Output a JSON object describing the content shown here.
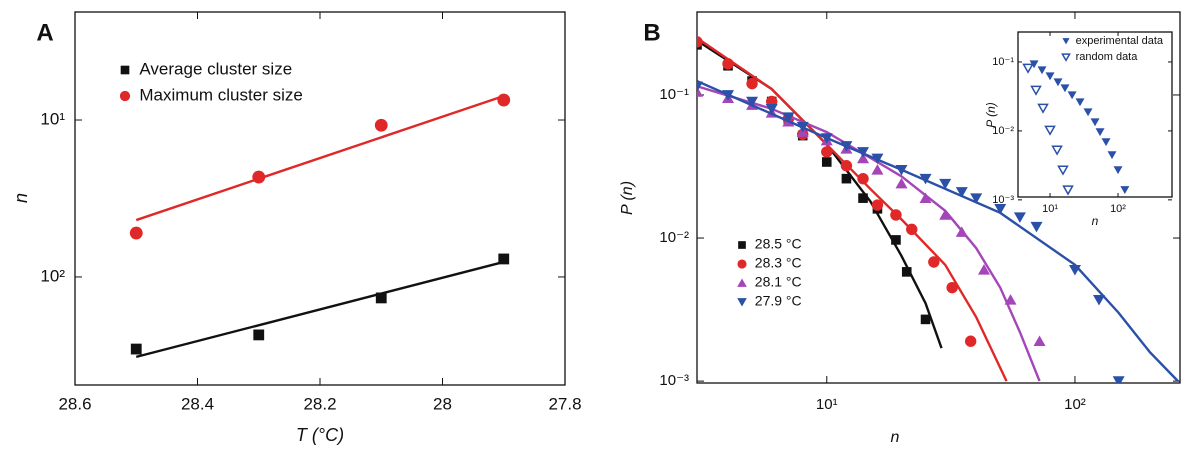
{
  "chart_data": [
    {
      "type": "scatter",
      "panel": "A",
      "xlabel": "T (°C)",
      "ylabel": "n",
      "xlim": [
        28.6,
        27.8
      ],
      "xticks": [
        28.6,
        28.4,
        28.2,
        28.0,
        27.8
      ],
      "ylog": true,
      "ylim": [
        488,
        2.05
      ],
      "yticks": [
        {
          "value": 10,
          "label": "10¹"
        },
        {
          "value": 100,
          "label": "10²"
        }
      ],
      "legend": "upper left",
      "x": [
        28.5,
        28.3,
        28.1,
        27.9
      ],
      "series": [
        {
          "name": "Average cluster size",
          "color": "#111111",
          "marker": "square",
          "values": [
            288,
            234,
            136,
            76.8
          ],
          "fit": {
            "x": [
              28.5,
              27.9
            ],
            "values": [
              323,
              80.2
            ]
          }
        },
        {
          "name": "Maximum cluster size",
          "color": "#e02828",
          "marker": "circle",
          "values": [
            52.5,
            23.1,
            10.8,
            7.46
          ],
          "fit": {
            "x": [
              28.5,
              27.9
            ],
            "values": [
              43.4,
              7.03
            ]
          }
        }
      ]
    },
    {
      "type": "scatter",
      "panel": "B",
      "xlabel": "n",
      "ylabel": "P (n)",
      "xlog": true,
      "xlim": [
        3,
        265
      ],
      "xticks": [
        {
          "value": 10,
          "label": "10¹"
        },
        {
          "value": 100,
          "label": "10²"
        }
      ],
      "ylog": true,
      "ylim": [
        0.00097,
        0.38
      ],
      "yticks": [
        {
          "value": 0.1,
          "label": "10⁻¹"
        },
        {
          "value": 0.01,
          "label": "10⁻²"
        },
        {
          "value": 0.001,
          "label": "10⁻³"
        }
      ],
      "legend": "lower left",
      "series": [
        {
          "name": "28.5 °C",
          "color": "#111111",
          "marker": "square",
          "x": [
            3,
            4,
            5,
            6,
            7,
            8,
            10,
            12,
            14,
            16,
            19,
            21,
            25
          ],
          "values": [
            0.224,
            0.16,
            0.125,
            0.09,
            0.068,
            0.052,
            0.034,
            0.026,
            0.019,
            0.016,
            0.0097,
            0.0058,
            0.0027
          ],
          "fit": {
            "x": [
              3,
              6,
              10,
              15,
              20,
              25,
              29
            ],
            "values": [
              0.24,
              0.11,
              0.045,
              0.018,
              0.0075,
              0.0035,
              0.0017
            ]
          }
        },
        {
          "name": "28.3 °C",
          "color": "#e02828",
          "marker": "circle",
          "x": [
            3,
            4,
            5,
            6,
            7,
            8,
            10,
            12,
            14,
            16,
            19,
            22,
            27,
            32,
            38
          ],
          "values": [
            0.235,
            0.165,
            0.12,
            0.09,
            0.068,
            0.053,
            0.04,
            0.032,
            0.026,
            0.017,
            0.0145,
            0.0115,
            0.0068,
            0.0045,
            0.0019
          ],
          "fit": {
            "x": [
              3,
              6,
              10,
              15,
              20,
              30,
              40,
              53
            ],
            "values": [
              0.25,
              0.11,
              0.045,
              0.022,
              0.0135,
              0.0065,
              0.0028,
              0.001
            ]
          }
        },
        {
          "name": "28.1 °C",
          "color": "#a445b8",
          "marker": "triangle-up",
          "x": [
            3,
            4,
            5,
            6,
            7,
            8,
            10,
            12,
            14,
            16,
            20,
            25,
            30,
            35,
            43,
            55,
            72
          ],
          "values": [
            0.105,
            0.095,
            0.085,
            0.075,
            0.065,
            0.055,
            0.048,
            0.042,
            0.036,
            0.03,
            0.024,
            0.019,
            0.0145,
            0.011,
            0.006,
            0.0037,
            0.0019
          ],
          "fit": {
            "x": [
              3,
              6,
              10,
              20,
              30,
              40,
              50,
              60,
              72
            ],
            "values": [
              0.115,
              0.08,
              0.055,
              0.027,
              0.0155,
              0.0085,
              0.0045,
              0.0022,
              0.001
            ]
          }
        },
        {
          "name": "27.9 °C",
          "color": "#2b50a8",
          "marker": "triangle-down",
          "x": [
            3,
            4,
            5,
            6,
            7,
            8,
            10,
            12,
            14,
            16,
            20,
            25,
            30,
            35,
            40,
            50,
            60,
            70,
            100,
            125,
            150
          ],
          "values": [
            0.115,
            0.1,
            0.09,
            0.08,
            0.07,
            0.06,
            0.05,
            0.044,
            0.04,
            0.036,
            0.03,
            0.026,
            0.024,
            0.021,
            0.019,
            0.016,
            0.014,
            0.012,
            0.006,
            0.0037,
            0.001
          ],
          "fit": {
            "x": [
              3,
              10,
              20,
              50,
              100,
              150,
              200,
              260
            ],
            "values": [
              0.125,
              0.05,
              0.03,
              0.015,
              0.0065,
              0.003,
              0.0016,
              0.001
            ]
          }
        }
      ]
    },
    {
      "type": "scatter",
      "xlabel": "n",
      "ylabel": "P (n)",
      "xlog": true,
      "xlim": [
        3.38,
        622
      ],
      "xticks": [
        {
          "value": 10,
          "label": "10¹"
        },
        {
          "value": 100,
          "label": "10²"
        }
      ],
      "ylog": true,
      "ylim": [
        0.0011,
        0.272
      ],
      "yticks": [
        {
          "value": 0.1,
          "label": "10⁻¹"
        },
        {
          "value": 0.01,
          "label": "10⁻²"
        },
        {
          "value": 0.001,
          "label": "10⁻³"
        }
      ],
      "legend": "upper right",
      "series": [
        {
          "name": "experimental data",
          "color": "#2b50a8",
          "marker": "triangle-down",
          "x": [
            5.82,
            7.62,
            10,
            13.1,
            16.6,
            21.1,
            27.6,
            36.2,
            45.9,
            54.4,
            66.6,
            81.6,
            100,
            126
          ],
          "values": [
            0.0935,
            0.0766,
            0.0627,
            0.0513,
            0.042,
            0.0332,
            0.0263,
            0.0188,
            0.0135,
            0.0097,
            0.00693,
            0.00449,
            0.00272,
            0.0014
          ]
        },
        {
          "name": "random data",
          "color": "#2b50a8",
          "marker": "triangle-down-open",
          "x": [
            2.86,
            4.75,
            6.22,
            7.89,
            10,
            12.7,
            15.5,
            18.4
          ],
          "values": [
            0.208,
            0.0819,
            0.0393,
            0.0215,
            0.0103,
            0.00531,
            0.00272,
            0.0014
          ]
        }
      ]
    }
  ]
}
